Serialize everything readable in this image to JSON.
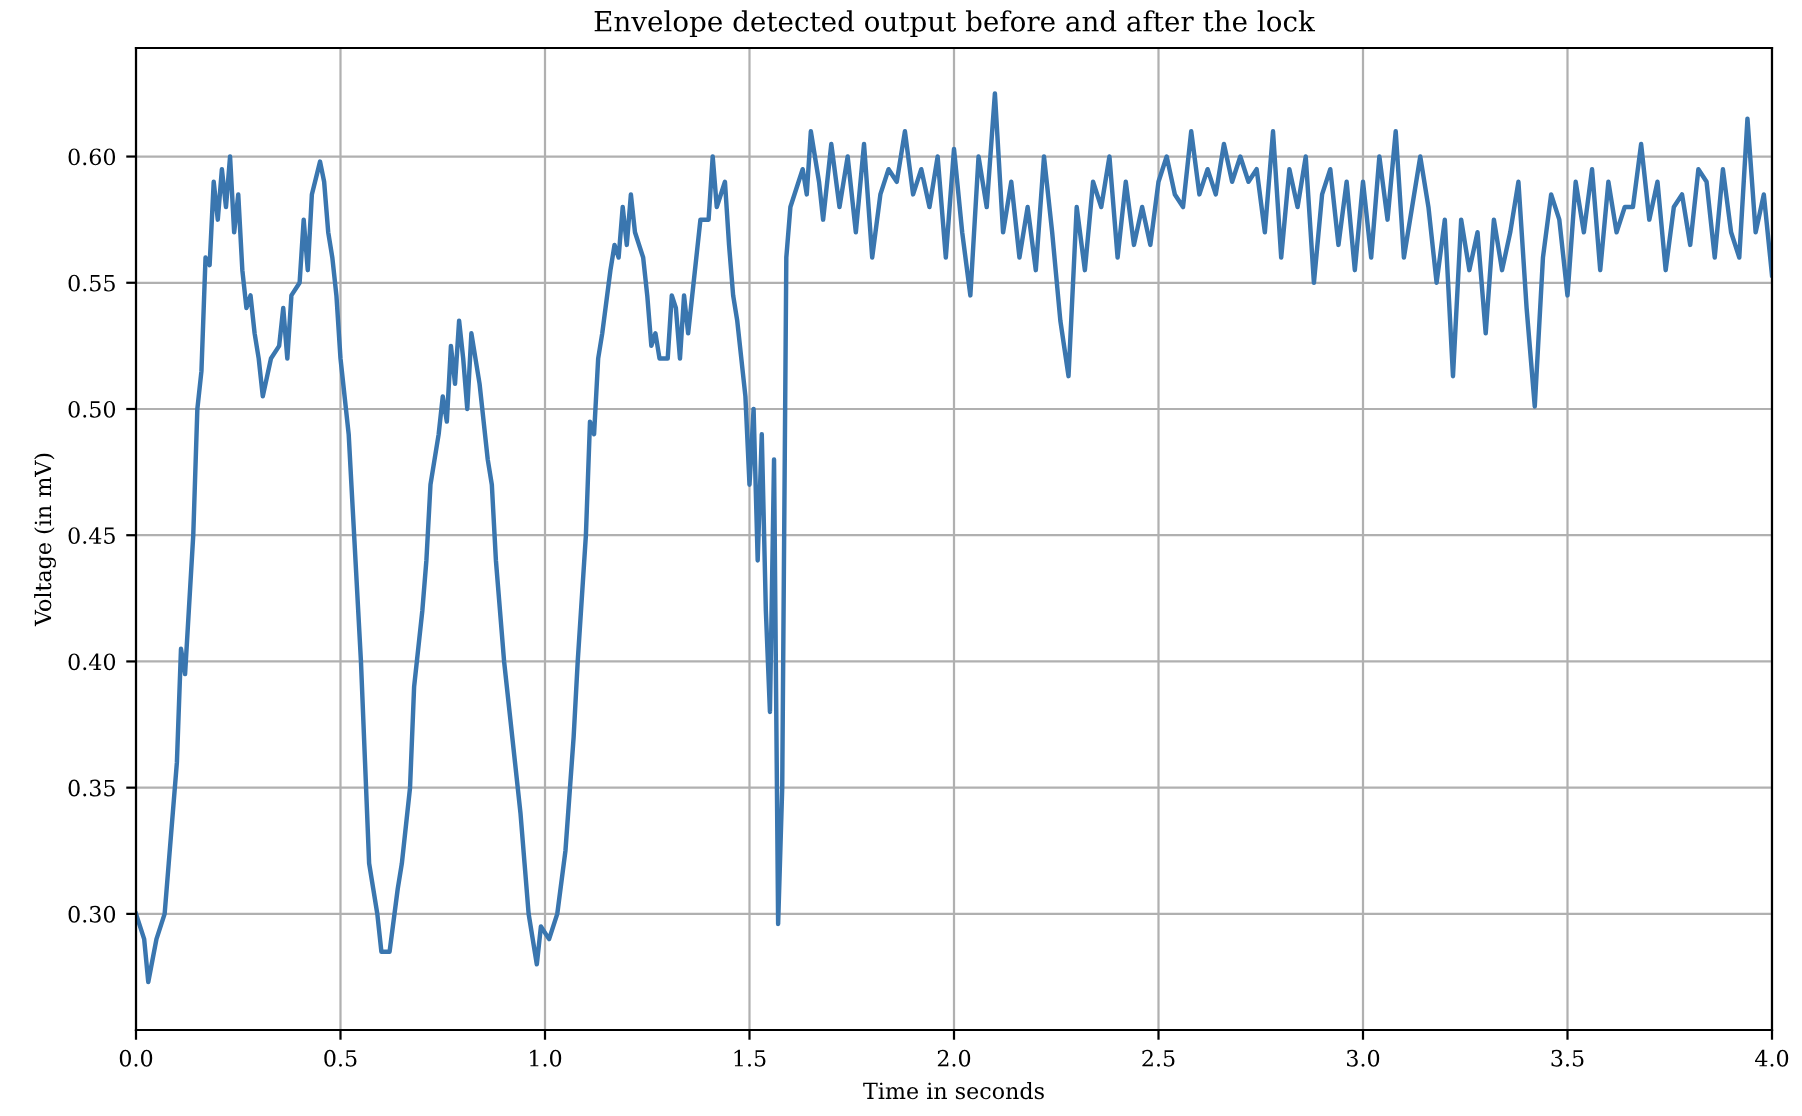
{
  "chart_data": {
    "type": "line",
    "title": "Envelope detected output before and after the lock",
    "xlabel": "Time in seconds",
    "ylabel": "Voltage (in mV)",
    "xlim": [
      0,
      4
    ],
    "ylim": [
      0.254,
      0.643
    ],
    "xticks": [
      {
        "value": 0,
        "label": "0.0"
      },
      {
        "value": 0.5,
        "label": "0.5"
      },
      {
        "value": 1,
        "label": "1.0"
      },
      {
        "value": 1.5,
        "label": "1.5"
      },
      {
        "value": 2,
        "label": "2.0"
      },
      {
        "value": 2.5,
        "label": "2.5"
      },
      {
        "value": 3,
        "label": "3.0"
      },
      {
        "value": 3.5,
        "label": "3.5"
      },
      {
        "value": 4,
        "label": "4.0"
      }
    ],
    "yticks": [
      {
        "value": 0.3,
        "label": "0.30"
      },
      {
        "value": 0.35,
        "label": "0.35"
      },
      {
        "value": 0.4,
        "label": "0.40"
      },
      {
        "value": 0.45,
        "label": "0.45"
      },
      {
        "value": 0.5,
        "label": "0.50"
      },
      {
        "value": 0.55,
        "label": "0.55"
      },
      {
        "value": 0.6,
        "label": "0.60"
      }
    ],
    "grid": true,
    "marker": "none",
    "line_style": "solid",
    "x": [
      0.0,
      0.02,
      0.03,
      0.05,
      0.07,
      0.08,
      0.1,
      0.11,
      0.12,
      0.14,
      0.15,
      0.16,
      0.17,
      0.18,
      0.19,
      0.2,
      0.21,
      0.22,
      0.23,
      0.24,
      0.25,
      0.26,
      0.27,
      0.28,
      0.29,
      0.3,
      0.31,
      0.33,
      0.35,
      0.36,
      0.37,
      0.38,
      0.4,
      0.41,
      0.42,
      0.43,
      0.45,
      0.46,
      0.47,
      0.48,
      0.49,
      0.5,
      0.52,
      0.53,
      0.55,
      0.56,
      0.57,
      0.58,
      0.59,
      0.6,
      0.62,
      0.64,
      0.65,
      0.67,
      0.68,
      0.7,
      0.71,
      0.72,
      0.74,
      0.75,
      0.76,
      0.77,
      0.78,
      0.79,
      0.8,
      0.81,
      0.82,
      0.84,
      0.86,
      0.87,
      0.88,
      0.9,
      0.92,
      0.94,
      0.95,
      0.96,
      0.97,
      0.98,
      0.99,
      1.01,
      1.03,
      1.05,
      1.07,
      1.08,
      1.1,
      1.11,
      1.12,
      1.13,
      1.14,
      1.16,
      1.17,
      1.18,
      1.19,
      1.2,
      1.21,
      1.22,
      1.24,
      1.25,
      1.26,
      1.27,
      1.28,
      1.3,
      1.31,
      1.32,
      1.33,
      1.34,
      1.35,
      1.37,
      1.38,
      1.4,
      1.41,
      1.42,
      1.44,
      1.45,
      1.46,
      1.47,
      1.49,
      1.5,
      1.51,
      1.52,
      1.53,
      1.54,
      1.55,
      1.56,
      1.57,
      1.58,
      1.59,
      1.6,
      1.62,
      1.63,
      1.64,
      1.65,
      1.67,
      1.68,
      1.7,
      1.72,
      1.74,
      1.76,
      1.78,
      1.8,
      1.82,
      1.84,
      1.86,
      1.88,
      1.9,
      1.92,
      1.94,
      1.96,
      1.98,
      2.0,
      2.02,
      2.04,
      2.06,
      2.08,
      2.1,
      2.12,
      2.14,
      2.16,
      2.18,
      2.2,
      2.22,
      2.24,
      2.26,
      2.28,
      2.3,
      2.32,
      2.34,
      2.36,
      2.38,
      2.4,
      2.42,
      2.44,
      2.46,
      2.48,
      2.5,
      2.52,
      2.54,
      2.56,
      2.58,
      2.6,
      2.62,
      2.64,
      2.66,
      2.68,
      2.7,
      2.72,
      2.74,
      2.76,
      2.78,
      2.8,
      2.82,
      2.84,
      2.86,
      2.88,
      2.9,
      2.92,
      2.94,
      2.96,
      2.98,
      3.0,
      3.02,
      3.04,
      3.06,
      3.08,
      3.1,
      3.12,
      3.14,
      3.16,
      3.18,
      3.2,
      3.22,
      3.24,
      3.26,
      3.28,
      3.3,
      3.32,
      3.34,
      3.36,
      3.38,
      3.4,
      3.42,
      3.44,
      3.46,
      3.48,
      3.5,
      3.52,
      3.54,
      3.56,
      3.58,
      3.6,
      3.62,
      3.64,
      3.66,
      3.68,
      3.7,
      3.72,
      3.74,
      3.76,
      3.78,
      3.8,
      3.82,
      3.84,
      3.86,
      3.88,
      3.9,
      3.92,
      3.94,
      3.96,
      3.98,
      4.0
    ],
    "series": [
      {
        "color": "#3a76af",
        "values": [
          0.3,
          0.29,
          0.273,
          0.29,
          0.3,
          0.32,
          0.36,
          0.405,
          0.395,
          0.45,
          0.5,
          0.515,
          0.56,
          0.557,
          0.59,
          0.575,
          0.595,
          0.58,
          0.6,
          0.57,
          0.585,
          0.555,
          0.54,
          0.545,
          0.53,
          0.52,
          0.505,
          0.52,
          0.525,
          0.54,
          0.52,
          0.545,
          0.55,
          0.575,
          0.555,
          0.585,
          0.598,
          0.59,
          0.57,
          0.56,
          0.545,
          0.52,
          0.49,
          0.46,
          0.4,
          0.36,
          0.32,
          0.31,
          0.3,
          0.285,
          0.285,
          0.31,
          0.32,
          0.35,
          0.39,
          0.42,
          0.44,
          0.47,
          0.49,
          0.505,
          0.495,
          0.525,
          0.51,
          0.535,
          0.52,
          0.5,
          0.53,
          0.51,
          0.48,
          0.47,
          0.44,
          0.4,
          0.37,
          0.34,
          0.32,
          0.3,
          0.29,
          0.28,
          0.295,
          0.29,
          0.3,
          0.325,
          0.37,
          0.4,
          0.45,
          0.495,
          0.49,
          0.52,
          0.53,
          0.555,
          0.565,
          0.56,
          0.58,
          0.565,
          0.585,
          0.57,
          0.56,
          0.545,
          0.525,
          0.53,
          0.52,
          0.52,
          0.545,
          0.54,
          0.52,
          0.545,
          0.53,
          0.56,
          0.575,
          0.575,
          0.6,
          0.58,
          0.59,
          0.565,
          0.545,
          0.535,
          0.505,
          0.47,
          0.5,
          0.44,
          0.49,
          0.42,
          0.38,
          0.48,
          0.296,
          0.35,
          0.56,
          0.58,
          0.59,
          0.595,
          0.585,
          0.61,
          0.59,
          0.575,
          0.605,
          0.58,
          0.6,
          0.57,
          0.605,
          0.56,
          0.585,
          0.595,
          0.59,
          0.61,
          0.585,
          0.595,
          0.58,
          0.6,
          0.56,
          0.603,
          0.57,
          0.545,
          0.6,
          0.58,
          0.625,
          0.57,
          0.59,
          0.56,
          0.58,
          0.555,
          0.6,
          0.57,
          0.535,
          0.513,
          0.58,
          0.555,
          0.59,
          0.58,
          0.6,
          0.56,
          0.59,
          0.565,
          0.58,
          0.565,
          0.59,
          0.6,
          0.585,
          0.58,
          0.61,
          0.585,
          0.595,
          0.585,
          0.605,
          0.59,
          0.6,
          0.59,
          0.595,
          0.57,
          0.61,
          0.56,
          0.595,
          0.58,
          0.6,
          0.55,
          0.585,
          0.595,
          0.565,
          0.59,
          0.555,
          0.59,
          0.56,
          0.6,
          0.575,
          0.61,
          0.56,
          0.58,
          0.6,
          0.58,
          0.55,
          0.575,
          0.513,
          0.575,
          0.555,
          0.57,
          0.53,
          0.575,
          0.555,
          0.57,
          0.59,
          0.54,
          0.501,
          0.56,
          0.585,
          0.575,
          0.545,
          0.59,
          0.57,
          0.595,
          0.555,
          0.59,
          0.57,
          0.58,
          0.58,
          0.605,
          0.575,
          0.59,
          0.555,
          0.58,
          0.585,
          0.565,
          0.595,
          0.59,
          0.56,
          0.595,
          0.57,
          0.56,
          0.615,
          0.57,
          0.585,
          0.553
        ]
      }
    ]
  }
}
